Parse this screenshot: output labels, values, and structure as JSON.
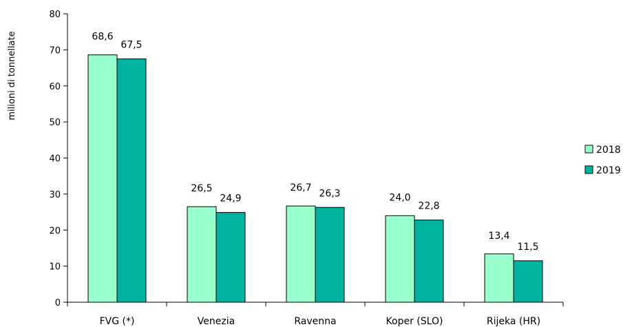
{
  "chart_data": {
    "type": "bar",
    "ylabel": "milioni di tonnellate",
    "ylim": [
      0,
      80
    ],
    "yticks": [
      0,
      10,
      20,
      30,
      40,
      50,
      60,
      70,
      80
    ],
    "categories": [
      "FVG (*)",
      "Venezia",
      "Ravenna",
      "Koper (SLO)",
      "Rijeka (HR)"
    ],
    "series": [
      {
        "name": "2018",
        "color": "#99ffcc",
        "values": [
          68.6,
          26.5,
          26.7,
          24.0,
          13.4
        ],
        "labels": [
          "68,6",
          "26,5",
          "26,7",
          "24,0",
          "13,4"
        ]
      },
      {
        "name": "2019",
        "color": "#00b39e",
        "values": [
          67.5,
          24.9,
          26.3,
          22.8,
          11.5
        ],
        "labels": [
          "67,5",
          "24,9",
          "26,3",
          "22,8",
          "11,5"
        ]
      }
    ],
    "legend_position": "right",
    "grid": false
  }
}
